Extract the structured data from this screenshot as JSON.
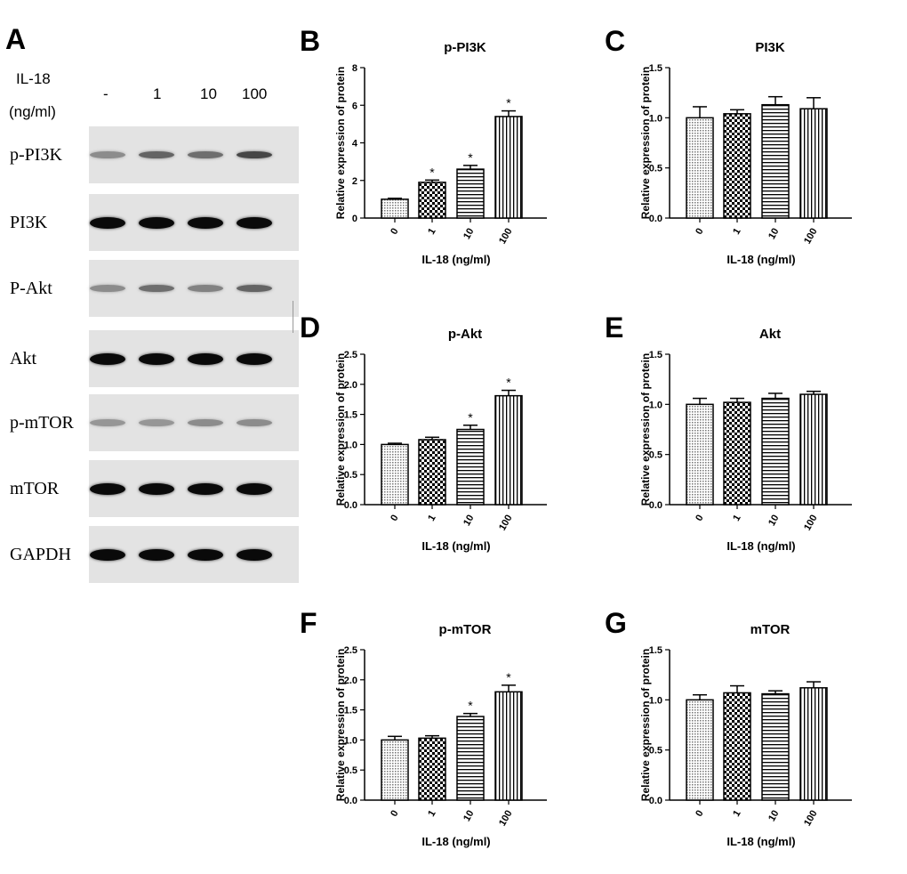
{
  "blot": {
    "panel_label": "A",
    "il18_label": "IL-18",
    "unit_label": "(ng/ml)",
    "lanes": [
      "-",
      "1",
      "10",
      "100"
    ],
    "proteins": [
      {
        "name": "p-PI3K",
        "intensity": [
          0.35,
          0.55,
          0.5,
          0.7
        ]
      },
      {
        "name": "PI3K",
        "intensity": [
          1.0,
          1.0,
          1.0,
          1.0
        ]
      },
      {
        "name": "P-Akt",
        "intensity": [
          0.35,
          0.5,
          0.4,
          0.55
        ]
      },
      {
        "name": "Akt",
        "intensity": [
          1.0,
          1.0,
          1.0,
          1.0
        ]
      },
      {
        "name": "p-mTOR",
        "intensity": [
          0.3,
          0.3,
          0.35,
          0.35
        ]
      },
      {
        "name": "mTOR",
        "intensity": [
          1.0,
          1.0,
          1.0,
          1.0
        ]
      },
      {
        "name": "GAPDH",
        "intensity": [
          1.0,
          1.0,
          1.0,
          1.0
        ]
      }
    ]
  },
  "chart_data": [
    {
      "panel": "B",
      "type": "bar",
      "title": "p-PI3K",
      "xlabel": "IL-18 (ng/ml)",
      "ylabel": "Relative expression of protein",
      "categories": [
        "0",
        "1",
        "10",
        "100"
      ],
      "values": [
        1.0,
        1.9,
        2.6,
        5.4
      ],
      "errors": [
        0.05,
        0.12,
        0.2,
        0.3
      ],
      "significance": [
        "",
        "*",
        "*",
        "*"
      ],
      "ylim": [
        0,
        8
      ],
      "yticks": [
        "0",
        "2",
        "4",
        "6",
        "8"
      ]
    },
    {
      "panel": "C",
      "type": "bar",
      "title": "PI3K",
      "xlabel": "IL-18 (ng/ml)",
      "ylabel": "Relative expression of protein",
      "categories": [
        "0",
        "1",
        "10",
        "100"
      ],
      "values": [
        1.0,
        1.04,
        1.13,
        1.09
      ],
      "errors": [
        0.11,
        0.04,
        0.08,
        0.11
      ],
      "significance": [
        "",
        "",
        "",
        ""
      ],
      "ylim": [
        0,
        1.5
      ],
      "yticks": [
        "0.0",
        "0.5",
        "1.0",
        "1.5"
      ]
    },
    {
      "panel": "D",
      "type": "bar",
      "title": "p-Akt",
      "xlabel": "IL-18 (ng/ml)",
      "ylabel": "Relative expression of protein",
      "categories": [
        "0",
        "1",
        "10",
        "100"
      ],
      "values": [
        1.0,
        1.08,
        1.25,
        1.81
      ],
      "errors": [
        0.02,
        0.04,
        0.07,
        0.09
      ],
      "significance": [
        "",
        "",
        "*",
        "*"
      ],
      "ylim": [
        0,
        2.5
      ],
      "yticks": [
        "0.0",
        "0.5",
        "1.0",
        "1.5",
        "2.0",
        "2.5"
      ]
    },
    {
      "panel": "E",
      "type": "bar",
      "title": "Akt",
      "xlabel": "IL-18 (ng/ml)",
      "ylabel": "Relative expression of protein",
      "categories": [
        "0",
        "1",
        "10",
        "100"
      ],
      "values": [
        1.0,
        1.02,
        1.06,
        1.1
      ],
      "errors": [
        0.06,
        0.04,
        0.05,
        0.03
      ],
      "significance": [
        "",
        "",
        "",
        ""
      ],
      "ylim": [
        0,
        1.5
      ],
      "yticks": [
        "0.0",
        "0.5",
        "1.0",
        "1.5"
      ]
    },
    {
      "panel": "F",
      "type": "bar",
      "title": "p-mTOR",
      "xlabel": "IL-18 (ng/ml)",
      "ylabel": "Relative expression of protein",
      "categories": [
        "0",
        "1",
        "10",
        "100"
      ],
      "values": [
        1.0,
        1.03,
        1.39,
        1.8
      ],
      "errors": [
        0.06,
        0.04,
        0.05,
        0.11
      ],
      "significance": [
        "",
        "",
        "*",
        "*"
      ],
      "ylim": [
        0,
        2.5
      ],
      "yticks": [
        "0.0",
        "0.5",
        "1.0",
        "1.5",
        "2.0",
        "2.5"
      ]
    },
    {
      "panel": "G",
      "type": "bar",
      "title": "mTOR",
      "xlabel": "IL-18 (ng/ml)",
      "ylabel": "Relative expression of protein",
      "categories": [
        "0",
        "1",
        "10",
        "100"
      ],
      "values": [
        1.0,
        1.07,
        1.06,
        1.12
      ],
      "errors": [
        0.05,
        0.07,
        0.03,
        0.06
      ],
      "significance": [
        "",
        "",
        "",
        ""
      ],
      "ylim": [
        0,
        1.5
      ],
      "yticks": [
        "0.0",
        "0.5",
        "1.0",
        "1.5"
      ]
    }
  ]
}
